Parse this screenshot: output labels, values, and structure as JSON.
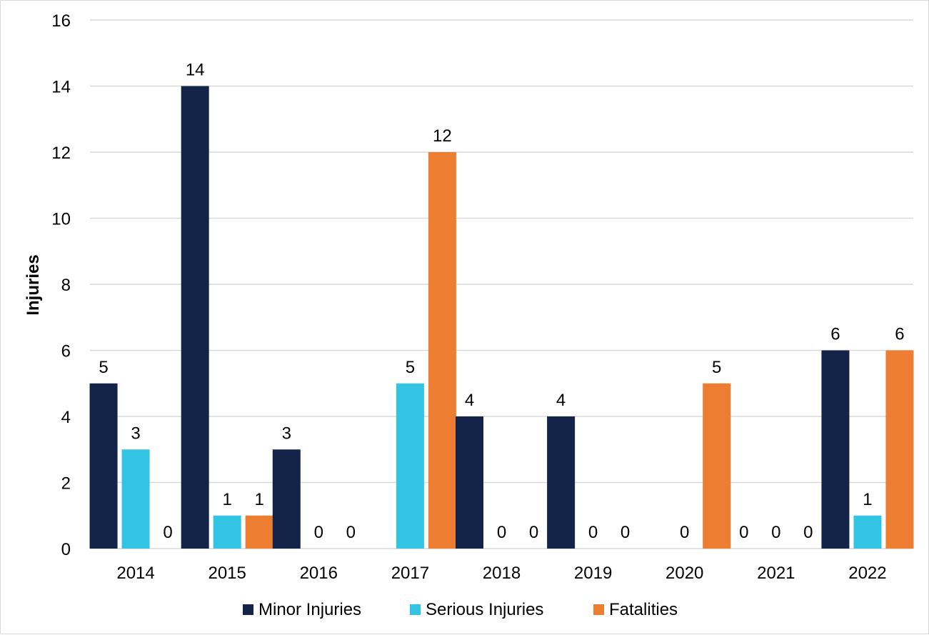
{
  "chart_data": {
    "type": "bar",
    "title": "",
    "xlabel": "",
    "ylabel": "Injuries",
    "ylim": [
      0,
      16
    ],
    "yticks": [
      0,
      2,
      4,
      6,
      8,
      10,
      12,
      14,
      16
    ],
    "grid": true,
    "legend_position": "bottom",
    "categories": [
      "2014",
      "2015",
      "2016",
      "2017",
      "2018",
      "2019",
      "2020",
      "2021",
      "2022"
    ],
    "series": [
      {
        "name": "Minor Injuries",
        "color": "#142448",
        "values": [
          5,
          14,
          3,
          null,
          4,
          4,
          null,
          0,
          6
        ]
      },
      {
        "name": "Serious Injuries",
        "color": "#33c3e3",
        "values": [
          3,
          1,
          0,
          5,
          0,
          0,
          0,
          0,
          1
        ]
      },
      {
        "name": "Fatalities",
        "color": "#ed7d31",
        "values": [
          0,
          1,
          0,
          12,
          0,
          0,
          5,
          0,
          6
        ]
      }
    ]
  }
}
